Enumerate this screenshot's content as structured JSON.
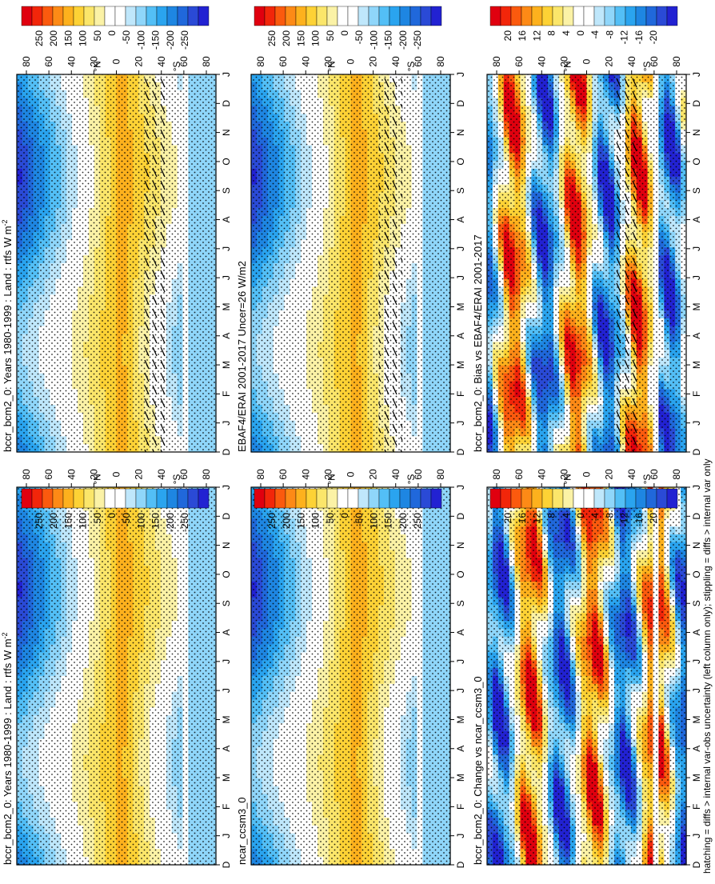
{
  "figure_note": "hatching = diffs > internal var-obs uncertainty (left column only); stippling = diffs > internal var only",
  "month_labels": [
    "D",
    "J",
    "F",
    "M",
    "A",
    "M",
    "J",
    "J",
    "A",
    "S",
    "O",
    "N",
    "D",
    "J"
  ],
  "lat_labels": [
    "80",
    "60",
    "40",
    "20",
    "0",
    "20",
    "40",
    "60",
    "80"
  ],
  "lat_suffix": [
    "°N",
    "°S"
  ],
  "colorbar_top": [
    "250",
    "200",
    "150",
    "100",
    "50",
    "0",
    "-50",
    "-100",
    "-150",
    "-200",
    "-250"
  ],
  "colorbar_bottom": [
    "20",
    "16",
    "12",
    "8",
    "4",
    "0",
    "-4",
    "-8",
    "-12",
    "-16",
    "-20"
  ],
  "palette": [
    "#e0000f",
    "#f2260a",
    "#fb5a0e",
    "#fd8a16",
    "#fdb11d",
    "#fdd235",
    "#fbe66a",
    "#fbf2a6",
    "#ffffff",
    "#ffffff",
    "#bfe7fb",
    "#8fd6fa",
    "#53bff6",
    "#2aa4ef",
    "#1e86e2",
    "#2068db",
    "#2a4ad6",
    "#2222d2"
  ],
  "chart_data": [
    {
      "type": "heatmap",
      "id": "tl",
      "title": "bccr_bcm2_0: Years 1980-1999 : Land : rtfs W m",
      "title_sup": "-2",
      "variable": "rtfs",
      "units": "W m-2",
      "x": "month (Dec-Jan, 14 ticks)",
      "y": "latitude 90N-90S",
      "range": [
        -250,
        250
      ],
      "hatching": true
    },
    {
      "type": "heatmap",
      "id": "tr",
      "title": "bccr_bcm2_0: Years 1980-1999 : Land : rtfs W m",
      "title_sup": "-2",
      "variable": "rtfs",
      "units": "W m-2",
      "range": [
        -250,
        250
      ],
      "hatching": false
    },
    {
      "type": "heatmap",
      "id": "ml",
      "title": "EBAF4/ERAI 2001-2017 Uncer=26 W/m2",
      "range": [
        -250,
        250
      ],
      "hatching": true
    },
    {
      "type": "heatmap",
      "id": "mr",
      "title": "ncar_ccsm3_0",
      "range": [
        -250,
        250
      ],
      "hatching": false
    },
    {
      "type": "heatmap",
      "id": "bl",
      "title": "bccr_bcm2_0: Bias vs EBAF4/ERAI 2001-2017",
      "range": [
        -20,
        20
      ],
      "hatching": true
    },
    {
      "type": "heatmap",
      "id": "br",
      "title": "bccr_bcm2_0: Change vs ncar_ccsm3_0",
      "range": [
        -20,
        20
      ],
      "hatching": false
    }
  ]
}
